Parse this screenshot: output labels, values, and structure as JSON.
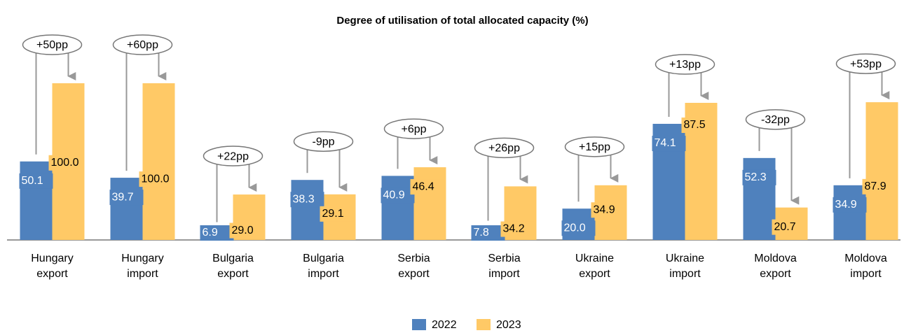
{
  "chart_data": {
    "type": "bar",
    "title": "Degree of utilisation of total allocated capacity (%)",
    "categories": [
      [
        "Hungary",
        "export"
      ],
      [
        "Hungary",
        "import"
      ],
      [
        "Bulgaria",
        "export"
      ],
      [
        "Bulgaria",
        "import"
      ],
      [
        "Serbia",
        "export"
      ],
      [
        "Serbia",
        "import"
      ],
      [
        "Ukraine",
        "export"
      ],
      [
        "Ukraine",
        "import"
      ],
      [
        "Moldova",
        "export"
      ],
      [
        "Moldova",
        "import"
      ]
    ],
    "series": [
      {
        "name": "2022",
        "color": "#4f81bd",
        "values": [
          50.1,
          39.7,
          6.9,
          38.3,
          40.9,
          7.8,
          20.0,
          74.1,
          52.3,
          34.9
        ],
        "value_labels": [
          "50.1",
          "39.7",
          "6.9",
          "38.3",
          "40.9",
          "7.8",
          "20.0",
          "74.1",
          "52.3",
          "34.9"
        ]
      },
      {
        "name": "2023",
        "color": "#ffc966",
        "values": [
          100.0,
          100.0,
          29.0,
          29.1,
          46.4,
          34.2,
          34.9,
          87.5,
          20.7,
          87.9
        ],
        "value_labels": [
          "100.0",
          "100.0",
          "29.0",
          "29.1",
          "46.4",
          "34.2",
          "34.9",
          "87.5",
          "20.7",
          "87.9"
        ]
      }
    ],
    "annotations": [
      "+50pp",
      "+60pp",
      "+22pp",
      "-9pp",
      "+6pp",
      "+26pp",
      "+15pp",
      "+13pp",
      "-32pp",
      "+53pp"
    ],
    "ylim": [
      0,
      100
    ],
    "legend": "bottom"
  }
}
